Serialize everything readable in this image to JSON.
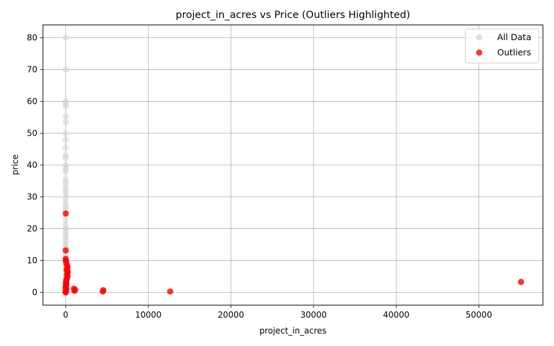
{
  "chart_data": {
    "type": "scatter",
    "title": "project_in_acres vs Price (Outliers Highlighted)",
    "xlabel": "project_in_acres",
    "ylabel": "price",
    "xlim": [
      -2750,
      57750
    ],
    "ylim": [
      -4,
      84
    ],
    "x_ticks": [
      0,
      10000,
      20000,
      30000,
      40000,
      50000
    ],
    "y_ticks": [
      0,
      10,
      20,
      30,
      40,
      50,
      60,
      70,
      80
    ],
    "grid": true,
    "legend_position": "top-right",
    "series": [
      {
        "name": "All Data",
        "color": "#d3d3d3",
        "points": [
          [
            5,
            80
          ],
          [
            5,
            70
          ],
          [
            5,
            60
          ],
          [
            5,
            59
          ],
          [
            5,
            58.5
          ],
          [
            8,
            55.2
          ],
          [
            5,
            53.5
          ],
          [
            5,
            50
          ],
          [
            5,
            48
          ],
          [
            5,
            45.5
          ],
          [
            5,
            43
          ],
          [
            5,
            42.2
          ],
          [
            5,
            40
          ],
          [
            5,
            39
          ],
          [
            5,
            38
          ],
          [
            5,
            35.5
          ],
          [
            5,
            34.5
          ],
          [
            5,
            33
          ],
          [
            5,
            32
          ],
          [
            5,
            31
          ],
          [
            5,
            29.5
          ],
          [
            5,
            28
          ],
          [
            5,
            27
          ],
          [
            5,
            26
          ],
          [
            5,
            24
          ],
          [
            5,
            22.5
          ],
          [
            5,
            21
          ],
          [
            5,
            20
          ],
          [
            5,
            19
          ],
          [
            5,
            18
          ],
          [
            5,
            17
          ],
          [
            5,
            16
          ],
          [
            5,
            15
          ],
          [
            5,
            14
          ],
          [
            5,
            13
          ],
          [
            5,
            12
          ],
          [
            5,
            11
          ],
          [
            5,
            10
          ],
          [
            5,
            9
          ],
          [
            5,
            8
          ],
          [
            5,
            7
          ],
          [
            5,
            6
          ],
          [
            5,
            5
          ],
          [
            5,
            4
          ],
          [
            5,
            3
          ],
          [
            5,
            2
          ],
          [
            5,
            1
          ],
          [
            5,
            0.5
          ]
        ]
      },
      {
        "name": "Outliers",
        "color": "#ff0000",
        "points": [
          [
            10,
            24.8
          ],
          [
            8,
            13.2
          ],
          [
            5,
            10.5
          ],
          [
            30,
            10
          ],
          [
            60,
            9.5
          ],
          [
            150,
            8.6
          ],
          [
            220,
            8
          ],
          [
            180,
            7.5
          ],
          [
            120,
            7
          ],
          [
            250,
            6.5
          ],
          [
            200,
            6
          ],
          [
            180,
            5.5
          ],
          [
            220,
            5
          ],
          [
            150,
            4.5
          ],
          [
            100,
            4
          ],
          [
            60,
            3.5
          ],
          [
            40,
            3
          ],
          [
            80,
            2.6
          ],
          [
            30,
            2.2
          ],
          [
            20,
            1.8
          ],
          [
            10,
            1.5
          ],
          [
            50,
            1.2
          ],
          [
            70,
            0.8
          ],
          [
            5,
            0.5
          ],
          [
            15,
            0.2
          ],
          [
            0,
            0
          ],
          [
            1000,
            1.2
          ],
          [
            1150,
            0.8
          ],
          [
            1050,
            0.5
          ],
          [
            4550,
            0.7
          ],
          [
            4500,
            0.3
          ],
          [
            12650,
            0.3
          ],
          [
            55100,
            3.3
          ]
        ]
      }
    ]
  }
}
